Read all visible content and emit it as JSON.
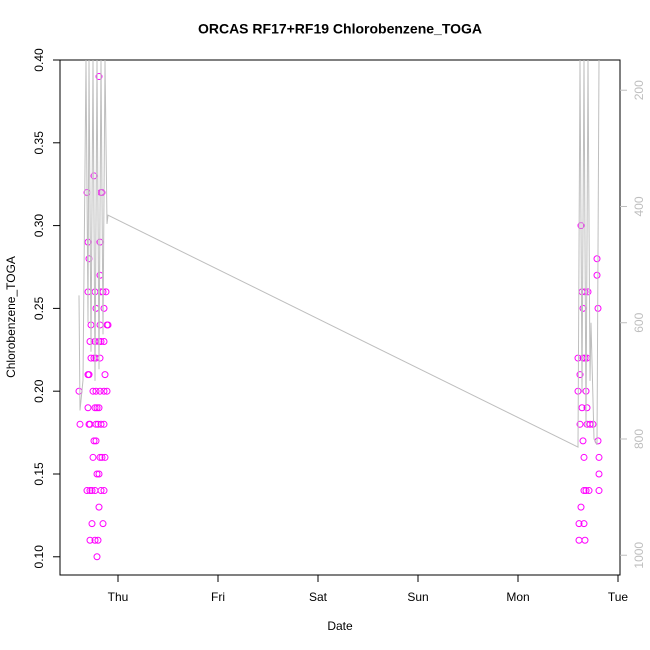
{
  "chart_data": {
    "type": "scatter",
    "title": "ORCAS RF17+RF19 Chlorobenzene_TOGA",
    "x_label": "Date",
    "y_label": "Chlorobenzene_TOGA",
    "xlim": [
      -0.58,
      5.02
    ],
    "xticks": [
      {
        "value": 0,
        "label": "Thu"
      },
      {
        "value": 1,
        "label": "Fri"
      },
      {
        "value": 2,
        "label": "Sat"
      },
      {
        "value": 3,
        "label": "Sun"
      },
      {
        "value": 4,
        "label": "Mon"
      },
      {
        "value": 5,
        "label": "Tue"
      }
    ],
    "ylim": [
      0.089,
      0.4
    ],
    "yticks": [
      {
        "value": 0.1,
        "label": "0.10"
      },
      0.15,
      {
        "value": 0.2,
        "label": "0.20"
      },
      0.25,
      {
        "value": 0.3,
        "label": "0.30"
      },
      0.35,
      {
        "value": 0.4,
        "label": "0.40"
      }
    ],
    "y2lim": [
      1034,
      148
    ],
    "y2ticks": [
      200,
      400,
      600,
      800,
      1000
    ],
    "series": [
      {
        "color": "#ff00ff",
        "x": [
          -0.39,
          -0.38,
          -0.31,
          -0.3,
          -0.3,
          -0.29,
          -0.3,
          -0.29,
          -0.29,
          -0.28,
          -0.3,
          -0.31,
          -0.28,
          -0.27,
          -0.28,
          -0.27,
          -0.28,
          -0.26,
          -0.26,
          -0.25,
          -0.25,
          -0.24,
          -0.24,
          -0.24,
          -0.23,
          -0.23,
          -0.23,
          -0.23,
          -0.23,
          -0.22,
          -0.22,
          -0.22,
          -0.22,
          -0.22,
          -0.21,
          -0.21,
          -0.21,
          -0.2,
          -0.2,
          -0.19,
          -0.19,
          -0.19,
          -0.19,
          -0.19,
          -0.18,
          -0.18,
          -0.18,
          -0.18,
          -0.18,
          -0.18,
          -0.17,
          -0.17,
          -0.17,
          -0.17,
          -0.17,
          -0.16,
          -0.16,
          -0.15,
          -0.15,
          -0.14,
          -0.14,
          -0.14,
          -0.14,
          -0.14,
          -0.13,
          -0.13,
          -0.12,
          -0.11,
          -0.11,
          -0.1,
          4.6,
          4.6,
          4.61,
          4.61,
          4.62,
          4.62,
          4.63,
          4.63,
          4.64,
          4.64,
          4.65,
          4.65,
          4.65,
          4.66,
          4.66,
          4.66,
          4.67,
          4.67,
          4.67,
          4.68,
          4.68,
          4.69,
          4.69,
          4.69,
          4.7,
          4.71,
          4.72,
          4.75,
          4.79,
          4.79,
          4.8,
          4.8,
          4.81,
          4.81,
          4.81
        ],
        "values": [
          0.2,
          0.18,
          0.32,
          0.29,
          0.26,
          0.28,
          0.21,
          0.21,
          0.18,
          0.18,
          0.19,
          0.14,
          0.14,
          0.24,
          0.23,
          0.22,
          0.11,
          0.12,
          0.14,
          0.16,
          0.2,
          0.22,
          0.17,
          0.33,
          0.26,
          0.23,
          0.19,
          0.14,
          0.11,
          0.25,
          0.22,
          0.2,
          0.18,
          0.17,
          0.19,
          0.15,
          0.1,
          0.18,
          0.11,
          0.39,
          0.23,
          0.15,
          0.13,
          0.19,
          0.29,
          0.27,
          0.24,
          0.22,
          0.2,
          0.16,
          0.32,
          0.26,
          0.23,
          0.18,
          0.14,
          0.32,
          0.16,
          0.26,
          0.12,
          0.25,
          0.23,
          0.2,
          0.18,
          0.14,
          0.21,
          0.16,
          0.26,
          0.24,
          0.2,
          0.24,
          0.22,
          0.2,
          0.12,
          0.11,
          0.21,
          0.18,
          0.3,
          0.13,
          0.19,
          0.26,
          0.25,
          0.22,
          0.17,
          0.16,
          0.12,
          0.14,
          0.26,
          0.22,
          0.11,
          0.2,
          0.14,
          0.19,
          0.18,
          0.22,
          0.26,
          0.14,
          0.18,
          0.18,
          0.28,
          0.27,
          0.25,
          0.17,
          0.16,
          0.15,
          0.14
        ]
      },
      {
        "type": "line",
        "axis": "y2",
        "color": "#bebebe",
        "x": [
          -0.39,
          -0.38,
          -0.35,
          -0.32,
          -0.3,
          -0.29,
          -0.27,
          -0.25,
          -0.23,
          -0.21,
          -0.19,
          -0.17,
          -0.15,
          -0.13,
          -0.11,
          -0.1,
          4.6,
          4.62,
          4.64,
          4.66,
          4.68,
          4.7,
          4.72,
          4.73,
          4.76,
          4.79,
          4.81
        ],
        "values": [
          553,
          751,
          699,
          148,
          600,
          148,
          650,
          148,
          700,
          148,
          680,
          148,
          620,
          148,
          430,
          415,
          814,
          148,
          720,
          148,
          780,
          148,
          700,
          600,
          800,
          810,
          148
        ]
      }
    ]
  }
}
